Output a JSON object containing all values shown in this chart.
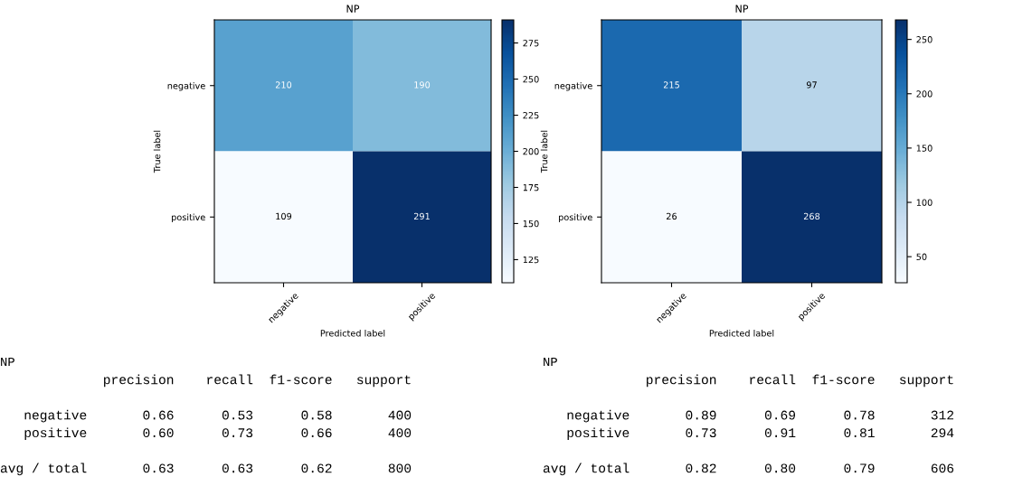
{
  "chart_data": [
    {
      "type": "heatmap",
      "title": "NP",
      "xlabel": "Predicted label",
      "ylabel": "True label",
      "categories": [
        "negative",
        "positive"
      ],
      "y_categories": [
        "negative",
        "positive"
      ],
      "cells": [
        [
          210,
          190
        ],
        [
          109,
          291
        ]
      ],
      "clim": [
        109,
        291
      ],
      "cticks": [
        125,
        150,
        175,
        200,
        225,
        250,
        275
      ],
      "data_labels": true
    },
    {
      "type": "heatmap",
      "title": "NP",
      "xlabel": "Predicted label",
      "ylabel": "True label",
      "categories": [
        "negative",
        "positive"
      ],
      "y_categories": [
        "negative",
        "positive"
      ],
      "cells": [
        [
          215,
          97
        ],
        [
          26,
          268
        ]
      ],
      "clim": [
        26,
        268
      ],
      "cticks": [
        50,
        100,
        150,
        200,
        250
      ],
      "data_labels": true
    },
    {
      "type": "other",
      "title": "NP",
      "annotations": [
        "             precision    recall  f1-score   support",
        "   negative       0.66      0.53      0.58       400",
        "   positive       0.60      0.73      0.66       400",
        "avg / total       0.63      0.63      0.62       800"
      ]
    },
    {
      "type": "other",
      "title": "NP",
      "annotations": [
        "             precision    recall  f1-score   support",
        "   negative       0.89      0.69      0.78       312",
        "   positive       0.73      0.91      0.81       294",
        "avg / total       0.82      0.80      0.79       606"
      ]
    }
  ]
}
